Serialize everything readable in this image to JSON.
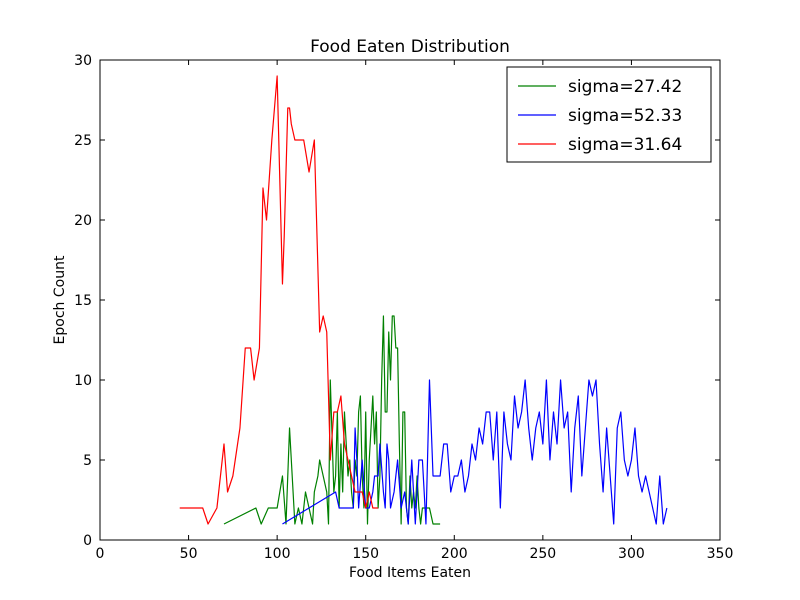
{
  "chart_data": {
    "type": "line",
    "title": "Food Eaten Distribution",
    "xlabel": "Food Items Eaten",
    "ylabel": "Epoch Count",
    "xlim": [
      0,
      350
    ],
    "ylim": [
      0,
      30
    ],
    "xticks": [
      0,
      50,
      100,
      150,
      200,
      250,
      300,
      350
    ],
    "yticks": [
      0,
      5,
      10,
      15,
      20,
      25,
      30
    ],
    "grid": false,
    "legend_position": "top-right",
    "series": [
      {
        "name": "sigma=27.42",
        "color": "#008000",
        "x": [
          70,
          88,
          91,
          95,
          100,
          103,
          105,
          107,
          110,
          112,
          114,
          116,
          118,
          120,
          121,
          123,
          124,
          126,
          128,
          129,
          130,
          132,
          133,
          134,
          135,
          136,
          137,
          138,
          140,
          141,
          142,
          143,
          144,
          145,
          146,
          147,
          148,
          149,
          150,
          151,
          152,
          153,
          154,
          155,
          156,
          157,
          158,
          159,
          160,
          161,
          162,
          163,
          164,
          165,
          166,
          167,
          168,
          169,
          170,
          171,
          172,
          173,
          174,
          175,
          176,
          177,
          178,
          179,
          180,
          181,
          182,
          184,
          186,
          188,
          192
        ],
        "y": [
          1,
          2,
          1,
          2,
          2,
          4,
          1,
          7,
          1,
          2,
          1,
          3,
          2,
          1,
          3,
          4,
          5,
          4,
          3,
          1,
          10,
          3,
          4,
          8,
          2,
          6,
          3,
          8,
          4,
          5,
          3,
          2,
          5,
          4,
          8,
          9,
          4,
          2,
          8,
          1,
          5,
          7,
          9,
          6,
          8,
          2,
          4,
          10,
          14,
          8,
          8,
          13,
          10,
          14,
          14,
          12,
          12,
          6,
          1,
          8,
          8,
          2,
          1,
          4,
          2,
          3,
          2,
          4,
          2,
          1,
          2,
          2,
          2,
          1,
          1
        ]
      },
      {
        "name": "sigma=52.33",
        "color": "#0000ff",
        "x": [
          103,
          133,
          135,
          137,
          139,
          141,
          143,
          144,
          145,
          146,
          148,
          150,
          152,
          154,
          155,
          156,
          157,
          158,
          160,
          161,
          162,
          163,
          164,
          166,
          168,
          170,
          172,
          174,
          176,
          178,
          180,
          182,
          184,
          186,
          188,
          190,
          192,
          194,
          196,
          198,
          200,
          202,
          204,
          206,
          208,
          210,
          212,
          214,
          216,
          218,
          220,
          222,
          224,
          226,
          228,
          230,
          232,
          234,
          236,
          238,
          240,
          242,
          244,
          246,
          248,
          250,
          252,
          254,
          256,
          258,
          260,
          262,
          264,
          266,
          268,
          270,
          272,
          274,
          276,
          278,
          280,
          282,
          284,
          286,
          288,
          290,
          292,
          294,
          296,
          298,
          300,
          302,
          304,
          306,
          308,
          310,
          312,
          314,
          316,
          318,
          320
        ],
        "y": [
          1,
          3,
          2,
          2,
          2,
          2,
          2,
          7,
          5,
          2,
          5,
          2,
          2,
          3,
          4,
          4,
          4,
          6,
          3,
          2,
          6,
          5,
          2,
          3,
          5,
          2,
          3,
          1,
          5,
          1,
          5,
          5,
          1,
          10,
          4,
          4,
          4,
          6,
          6,
          3,
          4,
          4,
          5,
          3,
          4,
          6,
          5,
          7,
          6,
          8,
          8,
          5,
          8,
          2,
          8,
          6,
          5,
          9,
          7,
          8,
          10,
          7,
          5,
          7,
          8,
          6,
          10,
          5,
          8,
          6,
          10,
          7,
          8,
          3,
          7,
          9,
          4,
          7,
          10,
          9,
          10,
          6,
          3,
          7,
          4,
          1,
          7,
          8,
          5,
          4,
          5,
          7,
          4,
          3,
          4,
          3,
          2,
          1,
          4,
          1,
          2
        ]
      },
      {
        "name": "sigma=31.64",
        "color": "#ff0000",
        "x": [
          45,
          53,
          58,
          61,
          66,
          70,
          72,
          75,
          79,
          82,
          85,
          87,
          90,
          92,
          94,
          97,
          100,
          103,
          104,
          106,
          107,
          108,
          110,
          113,
          115,
          118,
          121,
          124,
          126,
          128,
          130,
          132,
          134,
          136,
          138,
          140,
          142,
          144,
          146,
          148,
          150,
          152,
          154,
          157
        ],
        "y": [
          2,
          2,
          2,
          1,
          2,
          6,
          3,
          4,
          7,
          12,
          12,
          10,
          12,
          22,
          20,
          25,
          29,
          16,
          19,
          27,
          27,
          26,
          25,
          25,
          25,
          23,
          25,
          13,
          14,
          13,
          5,
          8,
          8,
          9,
          6,
          5,
          4,
          3,
          3,
          3,
          2,
          3,
          2,
          2
        ]
      }
    ]
  }
}
